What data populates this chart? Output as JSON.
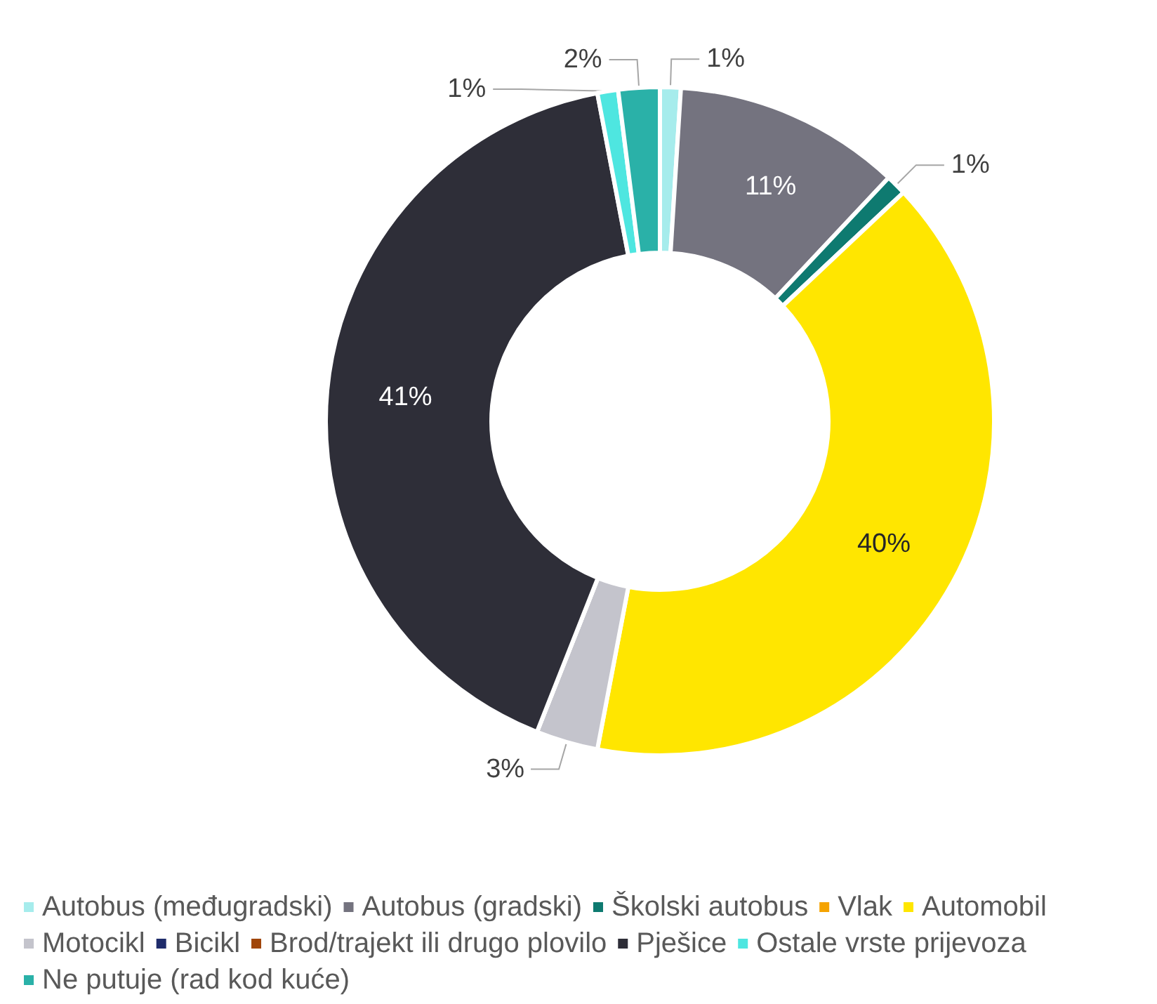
{
  "chart_data": {
    "type": "donut",
    "categories": [
      "Autobus (međugradski)",
      "Autobus (gradski)",
      "Školski autobus",
      "Vlak",
      "Automobil",
      "Motocikl",
      "Bicikl",
      "Brod/trajekt ili drugo plovilo",
      "Pješice",
      "Ostale vrste prijevoza",
      "Ne putuje (rad kod kuće)"
    ],
    "values": [
      1,
      11,
      1,
      0,
      40,
      3,
      0,
      0,
      41,
      1,
      2
    ],
    "colors": [
      "#a6ecec",
      "#74737f",
      "#0e7a70",
      "#f5a300",
      "#ffe600",
      "#c4c4cc",
      "#1f2c6b",
      "#a0460a",
      "#2e2e38",
      "#4ee6e0",
      "#2ab1a8"
    ],
    "value_labels": [
      "1%",
      "11%",
      "1%",
      null,
      "40%",
      "3%",
      null,
      null,
      "41%",
      "1%",
      "2%"
    ],
    "legend": "bottom"
  }
}
